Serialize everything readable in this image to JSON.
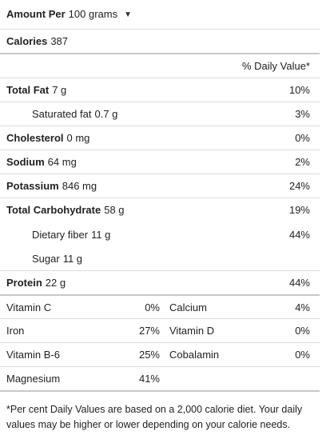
{
  "header": {
    "amount_per_label": "Amount Per",
    "amount_unit": "100 grams"
  },
  "calories": {
    "label": "Calories",
    "value": "387"
  },
  "daily_value_header": "% Daily Value*",
  "nutrients": [
    {
      "label": "Total Fat",
      "amount": "7 g",
      "percent": "10%"
    },
    {
      "label": "Saturated fat",
      "amount": "0.7 g",
      "percent": "3%"
    },
    {
      "label": "Cholesterol",
      "amount": "0 mg",
      "percent": "0%"
    },
    {
      "label": "Sodium",
      "amount": "64 mg",
      "percent": "2%"
    },
    {
      "label": "Potassium",
      "amount": "846 mg",
      "percent": "24%"
    },
    {
      "label": "Total Carbohydrate",
      "amount": "58 g",
      "percent": "19%"
    },
    {
      "label": "Dietary fiber",
      "amount": "11 g",
      "percent": "44%"
    },
    {
      "label": "Sugar",
      "amount": "11 g",
      "percent": ""
    },
    {
      "label": "Protein",
      "amount": "22 g",
      "percent": "44%"
    }
  ],
  "vitamins": [
    {
      "left_name": "Vitamin C",
      "left_pct": "0%",
      "right_name": "Calcium",
      "right_pct": "4%"
    },
    {
      "left_name": "Iron",
      "left_pct": "27%",
      "right_name": "Vitamin D",
      "right_pct": "0%"
    },
    {
      "left_name": "Vitamin B-6",
      "left_pct": "25%",
      "right_name": "Cobalamin",
      "right_pct": "0%"
    },
    {
      "left_name": "Magnesium",
      "left_pct": "41%",
      "right_name": "",
      "right_pct": ""
    }
  ],
  "footnote": "*Per cent Daily Values are based on a 2,000 calorie diet. Your daily values may be higher or lower depending on your calorie needs."
}
